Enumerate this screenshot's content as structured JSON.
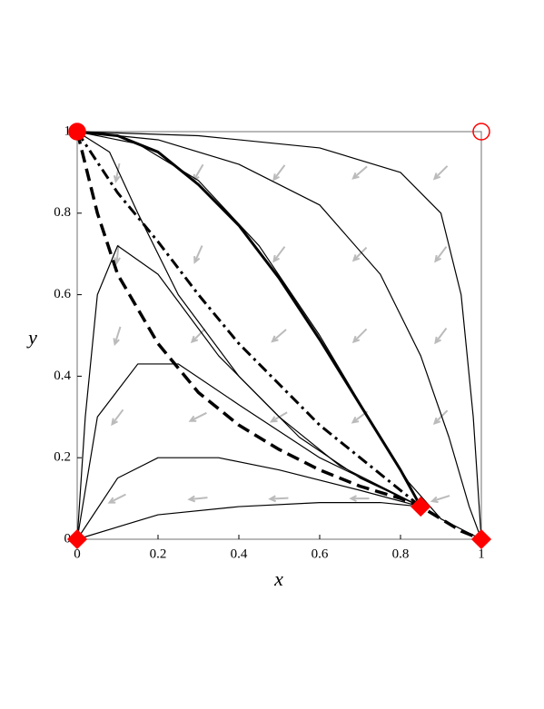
{
  "chart_data": {
    "type": "line",
    "xlabel": "x",
    "ylabel": "y",
    "xlim": [
      0,
      1
    ],
    "ylim": [
      0,
      1
    ],
    "xticks": [
      0,
      0.2,
      0.4,
      0.6,
      0.8,
      1
    ],
    "yticks": [
      0,
      0.2,
      0.4,
      0.6,
      0.8,
      1
    ],
    "series": [
      {
        "color": "#000000",
        "width": 3.5,
        "dash": "dashed",
        "x": [
          0,
          0.05,
          0.1,
          0.2,
          0.3,
          0.4,
          0.5,
          0.6,
          0.7,
          0.8,
          0.85,
          0.95,
          1
        ],
        "y": [
          1,
          0.8,
          0.65,
          0.48,
          0.36,
          0.28,
          0.22,
          0.17,
          0.13,
          0.1,
          0.08,
          0.02,
          0
        ]
      },
      {
        "color": "#000000",
        "width": 3,
        "dash": "dashdot",
        "x": [
          0,
          0.1,
          0.2,
          0.3,
          0.4,
          0.5,
          0.6,
          0.7,
          0.8,
          0.85
        ],
        "y": [
          1,
          0.85,
          0.73,
          0.6,
          0.48,
          0.38,
          0.28,
          0.2,
          0.12,
          0.08
        ]
      },
      {
        "color": "#000000",
        "width": 3,
        "dash": "solid",
        "x": [
          0,
          0.1,
          0.2,
          0.3,
          0.4,
          0.5,
          0.6,
          0.7,
          0.8,
          0.85
        ],
        "y": [
          1,
          0.99,
          0.95,
          0.87,
          0.77,
          0.64,
          0.49,
          0.33,
          0.17,
          0.08
        ]
      },
      {
        "color": "#000000",
        "width": 1.2,
        "dash": "solid",
        "x": [
          0,
          0.3,
          0.6,
          0.8,
          0.9,
          0.95,
          0.98,
          1
        ],
        "y": [
          1,
          0.99,
          0.96,
          0.9,
          0.8,
          0.6,
          0.3,
          0
        ]
      },
      {
        "color": "#000000",
        "width": 1.2,
        "dash": "solid",
        "x": [
          0,
          0.2,
          0.4,
          0.6,
          0.75,
          0.85,
          0.92,
          0.97,
          1
        ],
        "y": [
          1,
          0.98,
          0.92,
          0.82,
          0.65,
          0.45,
          0.25,
          0.08,
          0
        ]
      },
      {
        "color": "#000000",
        "width": 1.2,
        "dash": "solid",
        "x": [
          0,
          0.15,
          0.3,
          0.45,
          0.6,
          0.72,
          0.82,
          0.9,
          1
        ],
        "y": [
          1,
          0.97,
          0.88,
          0.72,
          0.5,
          0.3,
          0.14,
          0.05,
          0
        ]
      },
      {
        "color": "#000000",
        "width": 1.2,
        "dash": "solid",
        "x": [
          0,
          0.08,
          0.15,
          0.25,
          0.4,
          0.55,
          0.7,
          0.85
        ],
        "y": [
          1,
          0.95,
          0.8,
          0.6,
          0.4,
          0.25,
          0.15,
          0.08
        ]
      },
      {
        "color": "#000000",
        "width": 1.2,
        "dash": "solid",
        "x": [
          0,
          0.02,
          0.05,
          0.1,
          0.2,
          0.35,
          0.5,
          0.65,
          0.85
        ],
        "y": [
          0,
          0.3,
          0.6,
          0.72,
          0.65,
          0.45,
          0.3,
          0.18,
          0.08
        ]
      },
      {
        "color": "#000000",
        "width": 1.2,
        "dash": "solid",
        "x": [
          0,
          0.05,
          0.15,
          0.25,
          0.4,
          0.6,
          0.85
        ],
        "y": [
          0,
          0.3,
          0.43,
          0.43,
          0.33,
          0.2,
          0.08
        ]
      },
      {
        "color": "#000000",
        "width": 1.2,
        "dash": "solid",
        "x": [
          0,
          0.1,
          0.2,
          0.35,
          0.5,
          0.7,
          0.85
        ],
        "y": [
          0,
          0.15,
          0.2,
          0.2,
          0.17,
          0.12,
          0.08
        ]
      },
      {
        "color": "#000000",
        "width": 1.2,
        "dash": "solid",
        "x": [
          0,
          0.2,
          0.4,
          0.6,
          0.75,
          0.85
        ],
        "y": [
          0,
          0.06,
          0.08,
          0.09,
          0.09,
          0.08
        ]
      }
    ],
    "field": {
      "color": "#bbbbbb",
      "x": [
        0.1,
        0.3,
        0.5,
        0.7,
        0.9,
        0.1,
        0.3,
        0.5,
        0.7,
        0.9,
        0.1,
        0.3,
        0.5,
        0.7,
        0.9,
        0.1,
        0.3,
        0.5,
        0.7,
        0.9,
        0.1,
        0.3,
        0.5,
        0.7,
        0.9
      ],
      "y": [
        0.9,
        0.9,
        0.9,
        0.9,
        0.9,
        0.7,
        0.7,
        0.7,
        0.7,
        0.7,
        0.5,
        0.5,
        0.5,
        0.5,
        0.5,
        0.3,
        0.3,
        0.3,
        0.3,
        0.3,
        0.1,
        0.1,
        0.1,
        0.1,
        0.1
      ],
      "dx": [
        -0.2,
        -0.5,
        -0.6,
        -0.75,
        -0.7,
        -0.1,
        -0.4,
        -0.6,
        -0.7,
        -0.6,
        -0.3,
        -0.7,
        -0.75,
        -0.7,
        -0.6,
        -0.6,
        -0.9,
        -0.85,
        -0.8,
        -0.7,
        -0.9,
        -1,
        -1,
        -1,
        -0.95
      ],
      "dy": [
        -1,
        -0.85,
        -0.8,
        -0.65,
        -0.7,
        -1,
        -0.9,
        -0.8,
        -0.7,
        -0.8,
        -0.95,
        -0.7,
        -0.65,
        -0.7,
        -0.8,
        -0.8,
        -0.45,
        -0.5,
        -0.6,
        -0.7,
        -0.45,
        -0.1,
        -0.05,
        0,
        -0.3
      ]
    },
    "markers": {
      "color": "#ff0000",
      "x": [
        0,
        1,
        0,
        0.85,
        1
      ],
      "y": [
        1,
        1,
        0,
        0.08,
        0
      ],
      "shape": [
        "circle",
        "circle",
        "diamond",
        "diamond",
        "diamond"
      ],
      "filled": [
        true,
        false,
        true,
        true,
        true
      ]
    }
  }
}
